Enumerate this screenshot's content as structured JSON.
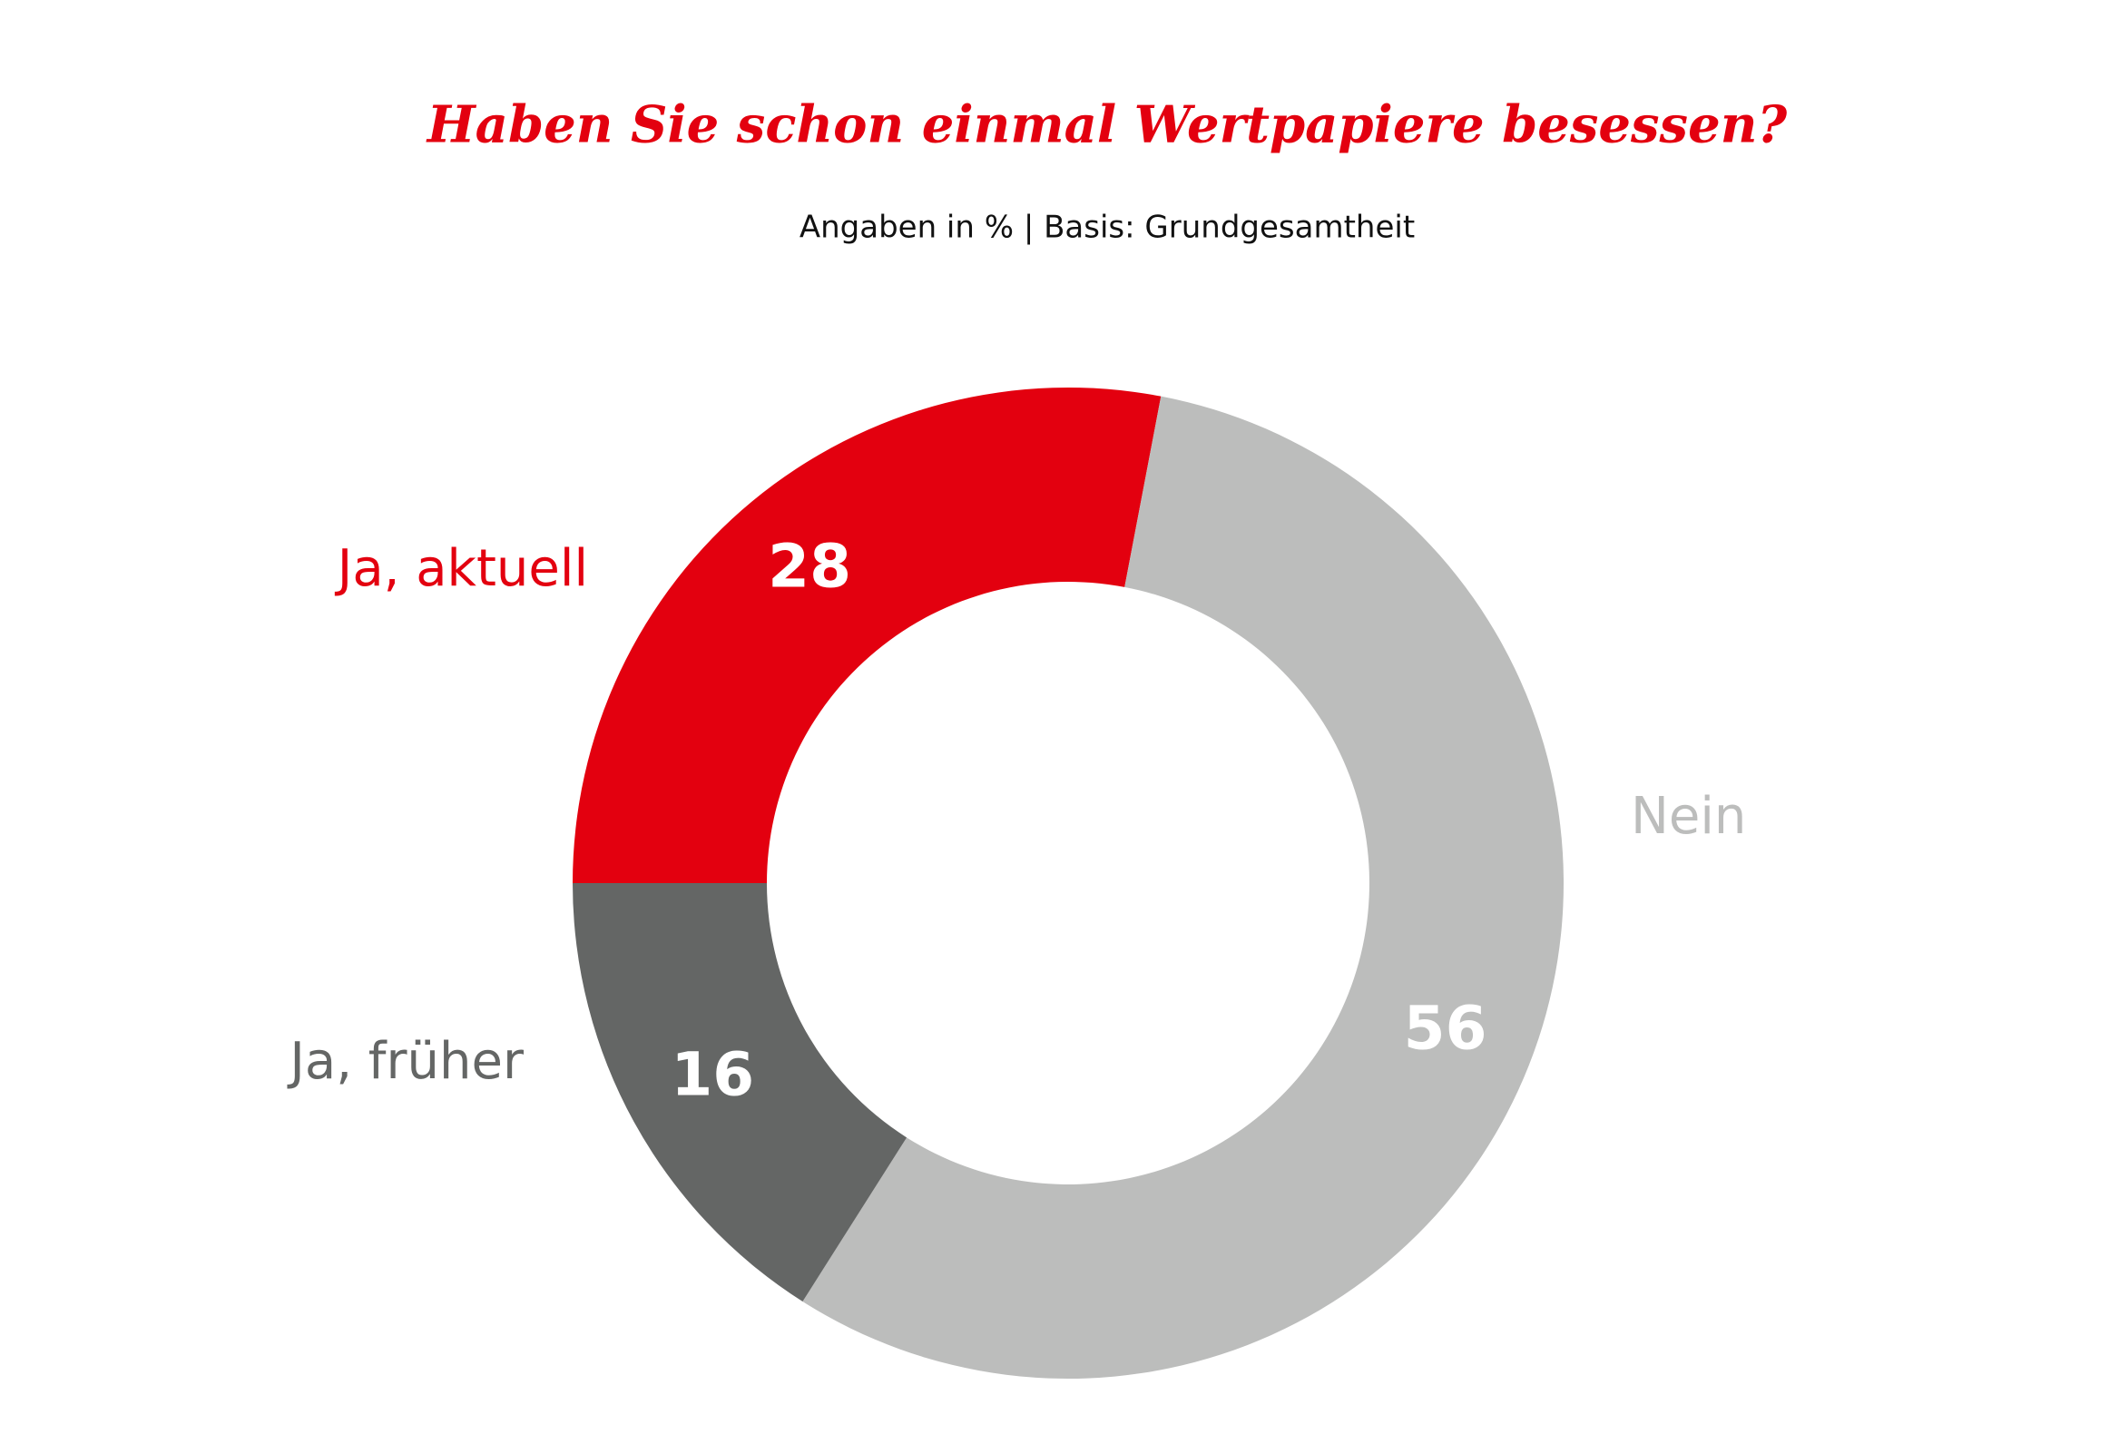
{
  "chart_data": {
    "type": "donut",
    "title": "Haben Sie schon einmal Wertpapiere besessen?",
    "subtitle": "Angaben in % | Basis: Grundgesamtheit",
    "categories": [
      "Ja, aktuell",
      "Nein",
      "Ja, früher"
    ],
    "values": [
      28,
      56,
      16
    ],
    "colors": [
      "#e3000f",
      "#bcbdbc",
      "#646665"
    ]
  }
}
